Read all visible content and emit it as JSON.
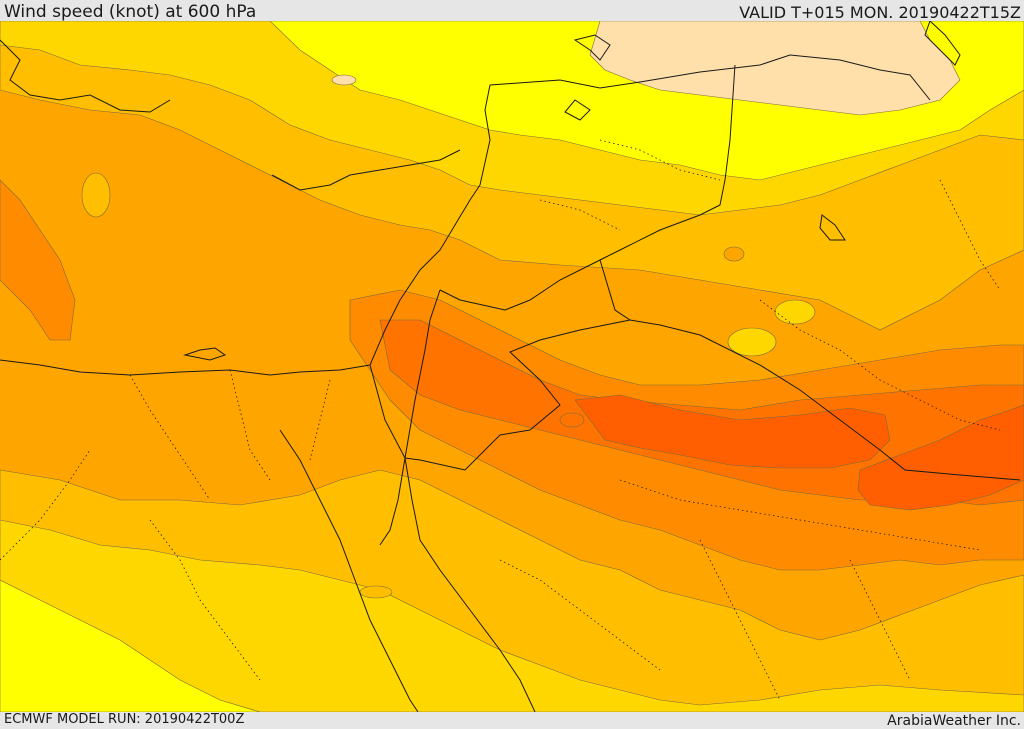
{
  "header": {
    "title": "Wind speed (knot) at 600 hPa",
    "valid_time": "VALID T+015 MON. 20190422T15Z"
  },
  "footer": {
    "model_run": "ECMWF MODEL RUN: 20190422T00Z",
    "credit": "ArabiaWeather Inc."
  },
  "map": {
    "field": "wind speed",
    "pressure_level_hpa": 600,
    "units": "knot",
    "region": "Eastern Mediterranean / Middle East",
    "color_bands": [
      "#ffdfaa",
      "#ffff00",
      "#ffd700",
      "#ffbf00",
      "#ffa500",
      "#ff8c00",
      "#ff7400",
      "#ff5f00"
    ]
  }
}
